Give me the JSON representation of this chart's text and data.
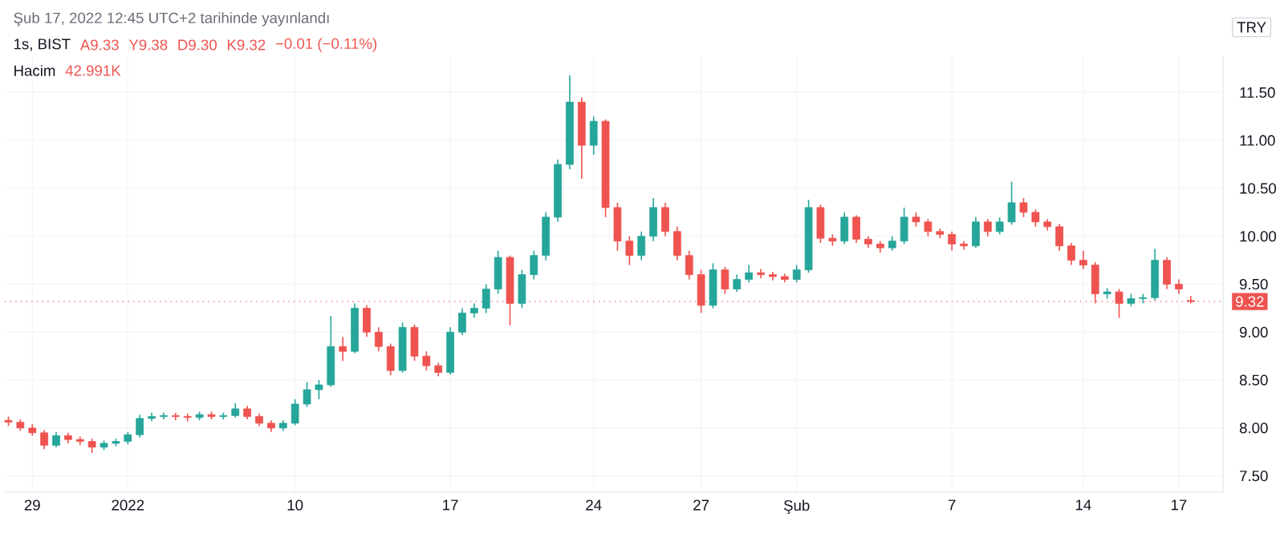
{
  "chart_data": {
    "type": "candlestick",
    "annotations": [
      "Şub 17, 2022 12:45 UTC+2 tarihinde yayınlandı",
      "1s, BIST",
      "A9.33",
      "Y9.38",
      "D9.30",
      "K9.32",
      "−0.01 (−0.11%)",
      "Hacim",
      "42.991K",
      "TRY"
    ],
    "categories": [
      null,
      null,
      "29",
      null,
      null,
      null,
      null,
      null,
      null,
      null,
      "2022",
      null,
      null,
      null,
      null,
      null,
      null,
      null,
      null,
      null,
      null,
      null,
      null,
      null,
      "10",
      null,
      null,
      null,
      null,
      null,
      null,
      null,
      null,
      null,
      null,
      null,
      null,
      "17",
      null,
      null,
      null,
      null,
      null,
      null,
      null,
      null,
      null,
      null,
      null,
      "24",
      null,
      null,
      null,
      null,
      null,
      null,
      null,
      null,
      "27",
      null,
      null,
      null,
      null,
      null,
      null,
      null,
      "Şub",
      null,
      null,
      null,
      null,
      null,
      null,
      null,
      null,
      null,
      null,
      null,
      null,
      "7",
      null,
      null,
      null,
      null,
      null,
      null,
      null,
      null,
      null,
      null,
      "14",
      null,
      null,
      null,
      null,
      null,
      null,
      null,
      "17",
      null
    ],
    "ohlc": [
      [
        8.08,
        8.12,
        8.02,
        8.06
      ],
      [
        8.06,
        8.09,
        7.97,
        8.0
      ],
      [
        8.0,
        8.04,
        7.92,
        7.95
      ],
      [
        7.95,
        7.98,
        7.78,
        7.82
      ],
      [
        7.82,
        7.96,
        7.8,
        7.92
      ],
      [
        7.92,
        7.95,
        7.84,
        7.88
      ],
      [
        7.88,
        7.91,
        7.82,
        7.86
      ],
      [
        7.86,
        7.89,
        7.74,
        7.8
      ],
      [
        7.8,
        7.87,
        7.77,
        7.84
      ],
      [
        7.84,
        7.89,
        7.81,
        7.86
      ],
      [
        7.86,
        7.96,
        7.83,
        7.93
      ],
      [
        7.93,
        8.14,
        7.9,
        8.1
      ],
      [
        8.1,
        8.16,
        8.07,
        8.12
      ],
      [
        8.12,
        8.16,
        8.09,
        8.13
      ],
      [
        8.13,
        8.16,
        8.08,
        8.12
      ],
      [
        8.12,
        8.15,
        8.07,
        8.11
      ],
      [
        8.11,
        8.17,
        8.08,
        8.14
      ],
      [
        8.14,
        8.17,
        8.09,
        8.12
      ],
      [
        8.12,
        8.16,
        8.09,
        8.13
      ],
      [
        8.13,
        8.26,
        8.11,
        8.2
      ],
      [
        8.2,
        8.23,
        8.09,
        8.12
      ],
      [
        8.12,
        8.15,
        8.02,
        8.05
      ],
      [
        8.05,
        8.08,
        7.96,
        8.0
      ],
      [
        8.0,
        8.08,
        7.97,
        8.05
      ],
      [
        8.05,
        8.3,
        8.03,
        8.25
      ],
      [
        8.25,
        8.48,
        8.22,
        8.4
      ],
      [
        8.4,
        8.5,
        8.3,
        8.45
      ],
      [
        8.45,
        9.17,
        8.43,
        8.85
      ],
      [
        8.85,
        8.95,
        8.7,
        8.8
      ],
      [
        8.8,
        9.3,
        8.78,
        9.25
      ],
      [
        9.25,
        9.28,
        8.95,
        9.0
      ],
      [
        9.0,
        9.05,
        8.8,
        8.85
      ],
      [
        8.85,
        8.88,
        8.55,
        8.6
      ],
      [
        8.6,
        9.1,
        8.58,
        9.05
      ],
      [
        9.05,
        9.08,
        8.7,
        8.75
      ],
      [
        8.75,
        8.8,
        8.6,
        8.65
      ],
      [
        8.65,
        8.68,
        8.54,
        8.58
      ],
      [
        8.58,
        9.05,
        8.56,
        9.0
      ],
      [
        9.0,
        9.25,
        8.97,
        9.2
      ],
      [
        9.2,
        9.3,
        9.15,
        9.25
      ],
      [
        9.25,
        9.5,
        9.2,
        9.45
      ],
      [
        9.45,
        9.85,
        9.4,
        9.78
      ],
      [
        9.78,
        9.8,
        9.07,
        9.3
      ],
      [
        9.3,
        9.65,
        9.25,
        9.6
      ],
      [
        9.6,
        9.85,
        9.55,
        9.8
      ],
      [
        9.8,
        10.25,
        9.75,
        10.2
      ],
      [
        10.2,
        10.8,
        10.15,
        10.75
      ],
      [
        10.75,
        11.68,
        10.7,
        11.4
      ],
      [
        11.4,
        11.45,
        10.6,
        10.95
      ],
      [
        10.95,
        11.25,
        10.85,
        11.2
      ],
      [
        11.2,
        11.22,
        10.2,
        10.3
      ],
      [
        10.3,
        10.35,
        9.85,
        9.95
      ],
      [
        9.95,
        10.0,
        9.7,
        9.8
      ],
      [
        9.8,
        10.05,
        9.75,
        10.0
      ],
      [
        10.0,
        10.4,
        9.95,
        10.3
      ],
      [
        10.3,
        10.35,
        10.0,
        10.05
      ],
      [
        10.05,
        10.1,
        9.75,
        9.8
      ],
      [
        9.8,
        9.85,
        9.55,
        9.6
      ],
      [
        9.6,
        9.65,
        9.2,
        9.28
      ],
      [
        9.28,
        9.72,
        9.25,
        9.65
      ],
      [
        9.65,
        9.68,
        9.4,
        9.45
      ],
      [
        9.45,
        9.6,
        9.42,
        9.55
      ],
      [
        9.55,
        9.7,
        9.52,
        9.62
      ],
      [
        9.62,
        9.66,
        9.56,
        9.6
      ],
      [
        9.6,
        9.63,
        9.54,
        9.58
      ],
      [
        9.58,
        9.61,
        9.52,
        9.55
      ],
      [
        9.55,
        9.7,
        9.52,
        9.65
      ],
      [
        9.65,
        10.38,
        9.62,
        10.3
      ],
      [
        10.3,
        10.33,
        9.93,
        9.98
      ],
      [
        9.98,
        10.02,
        9.9,
        9.95
      ],
      [
        9.95,
        10.25,
        9.92,
        10.2
      ],
      [
        10.2,
        10.22,
        9.93,
        9.97
      ],
      [
        9.97,
        10.0,
        9.88,
        9.92
      ],
      [
        9.92,
        9.95,
        9.83,
        9.88
      ],
      [
        9.88,
        10.0,
        9.85,
        9.95
      ],
      [
        9.95,
        10.3,
        9.92,
        10.2
      ],
      [
        10.2,
        10.25,
        10.1,
        10.15
      ],
      [
        10.15,
        10.18,
        10.0,
        10.05
      ],
      [
        10.05,
        10.08,
        9.98,
        10.02
      ],
      [
        10.02,
        10.05,
        9.85,
        9.92
      ],
      [
        9.92,
        9.95,
        9.86,
        9.9
      ],
      [
        9.9,
        10.2,
        9.88,
        10.15
      ],
      [
        10.15,
        10.18,
        10.0,
        10.05
      ],
      [
        10.05,
        10.2,
        10.02,
        10.15
      ],
      [
        10.15,
        10.57,
        10.12,
        10.35
      ],
      [
        10.35,
        10.4,
        10.2,
        10.25
      ],
      [
        10.25,
        10.28,
        10.1,
        10.15
      ],
      [
        10.15,
        10.18,
        10.06,
        10.1
      ],
      [
        10.1,
        10.13,
        9.85,
        9.9
      ],
      [
        9.9,
        9.93,
        9.7,
        9.75
      ],
      [
        9.75,
        9.85,
        9.66,
        9.7
      ],
      [
        9.7,
        9.73,
        9.3,
        9.4
      ],
      [
        9.4,
        9.46,
        9.35,
        9.42
      ],
      [
        9.42,
        9.45,
        9.15,
        9.3
      ],
      [
        9.3,
        9.4,
        9.27,
        9.35
      ],
      [
        9.35,
        9.4,
        9.3,
        9.36
      ],
      [
        9.36,
        9.87,
        9.33,
        9.75
      ],
      [
        9.75,
        9.78,
        9.45,
        9.5
      ],
      [
        9.5,
        9.55,
        9.4,
        9.45
      ],
      [
        9.33,
        9.38,
        9.3,
        9.32
      ]
    ],
    "colors": [
      "#ef5350",
      "#ef5350",
      "#ef5350",
      "#ef5350",
      "#26a69a",
      "#ef5350",
      "#ef5350",
      "#ef5350",
      "#26a69a",
      "#26a69a",
      "#26a69a",
      "#26a69a",
      "#26a69a",
      "#26a69a",
      "#ef5350",
      "#ef5350",
      "#26a69a",
      "#ef5350",
      "#26a69a",
      "#26a69a",
      "#ef5350",
      "#ef5350",
      "#ef5350",
      "#26a69a",
      "#26a69a",
      "#26a69a",
      "#26a69a",
      "#26a69a",
      "#ef5350",
      "#26a69a",
      "#ef5350",
      "#ef5350",
      "#ef5350",
      "#26a69a",
      "#ef5350",
      "#ef5350",
      "#ef5350",
      "#26a69a",
      "#26a69a",
      "#26a69a",
      "#26a69a",
      "#26a69a",
      "#ef5350",
      "#26a69a",
      "#26a69a",
      "#26a69a",
      "#26a69a",
      "#26a69a",
      "#ef5350",
      "#26a69a",
      "#ef5350",
      "#ef5350",
      "#ef5350",
      "#26a69a",
      "#26a69a",
      "#ef5350",
      "#ef5350",
      "#ef5350",
      "#ef5350",
      "#26a69a",
      "#ef5350",
      "#26a69a",
      "#26a69a",
      "#ef5350",
      "#ef5350",
      "#ef5350",
      "#26a69a",
      "#26a69a",
      "#ef5350",
      "#ef5350",
      "#26a69a",
      "#ef5350",
      "#ef5350",
      "#ef5350",
      "#26a69a",
      "#26a69a",
      "#ef5350",
      "#ef5350",
      "#ef5350",
      "#ef5350",
      "#ef5350",
      "#26a69a",
      "#ef5350",
      "#26a69a",
      "#26a69a",
      "#ef5350",
      "#ef5350",
      "#ef5350",
      "#ef5350",
      "#ef5350",
      "#ef5350",
      "#ef5350",
      "#26a69a",
      "#ef5350",
      "#26a69a",
      "#26a69a",
      "#26a69a",
      "#ef5350",
      "#ef5350",
      "#ef5350"
    ],
    "ylim": [
      7.33,
      11.88
    ],
    "yticks": [
      {
        "value": 7.5,
        "label": "7.50"
      },
      {
        "value": 8.0,
        "label": "8.00"
      },
      {
        "value": 8.5,
        "label": "8.50"
      },
      {
        "value": 9.0,
        "label": "9.00"
      },
      {
        "value": 9.5,
        "label": "9.50"
      },
      {
        "value": 10.0,
        "label": "10.00"
      },
      {
        "value": 10.5,
        "label": "10.50"
      },
      {
        "value": 11.0,
        "label": "11.00"
      },
      {
        "value": 11.5,
        "label": "11.50"
      }
    ],
    "ref_lines": [
      {
        "axis": "y",
        "value": 9.32,
        "label": "9.32",
        "color": "#ef5350",
        "line_style": "dotted"
      }
    ],
    "grid": true
  }
}
